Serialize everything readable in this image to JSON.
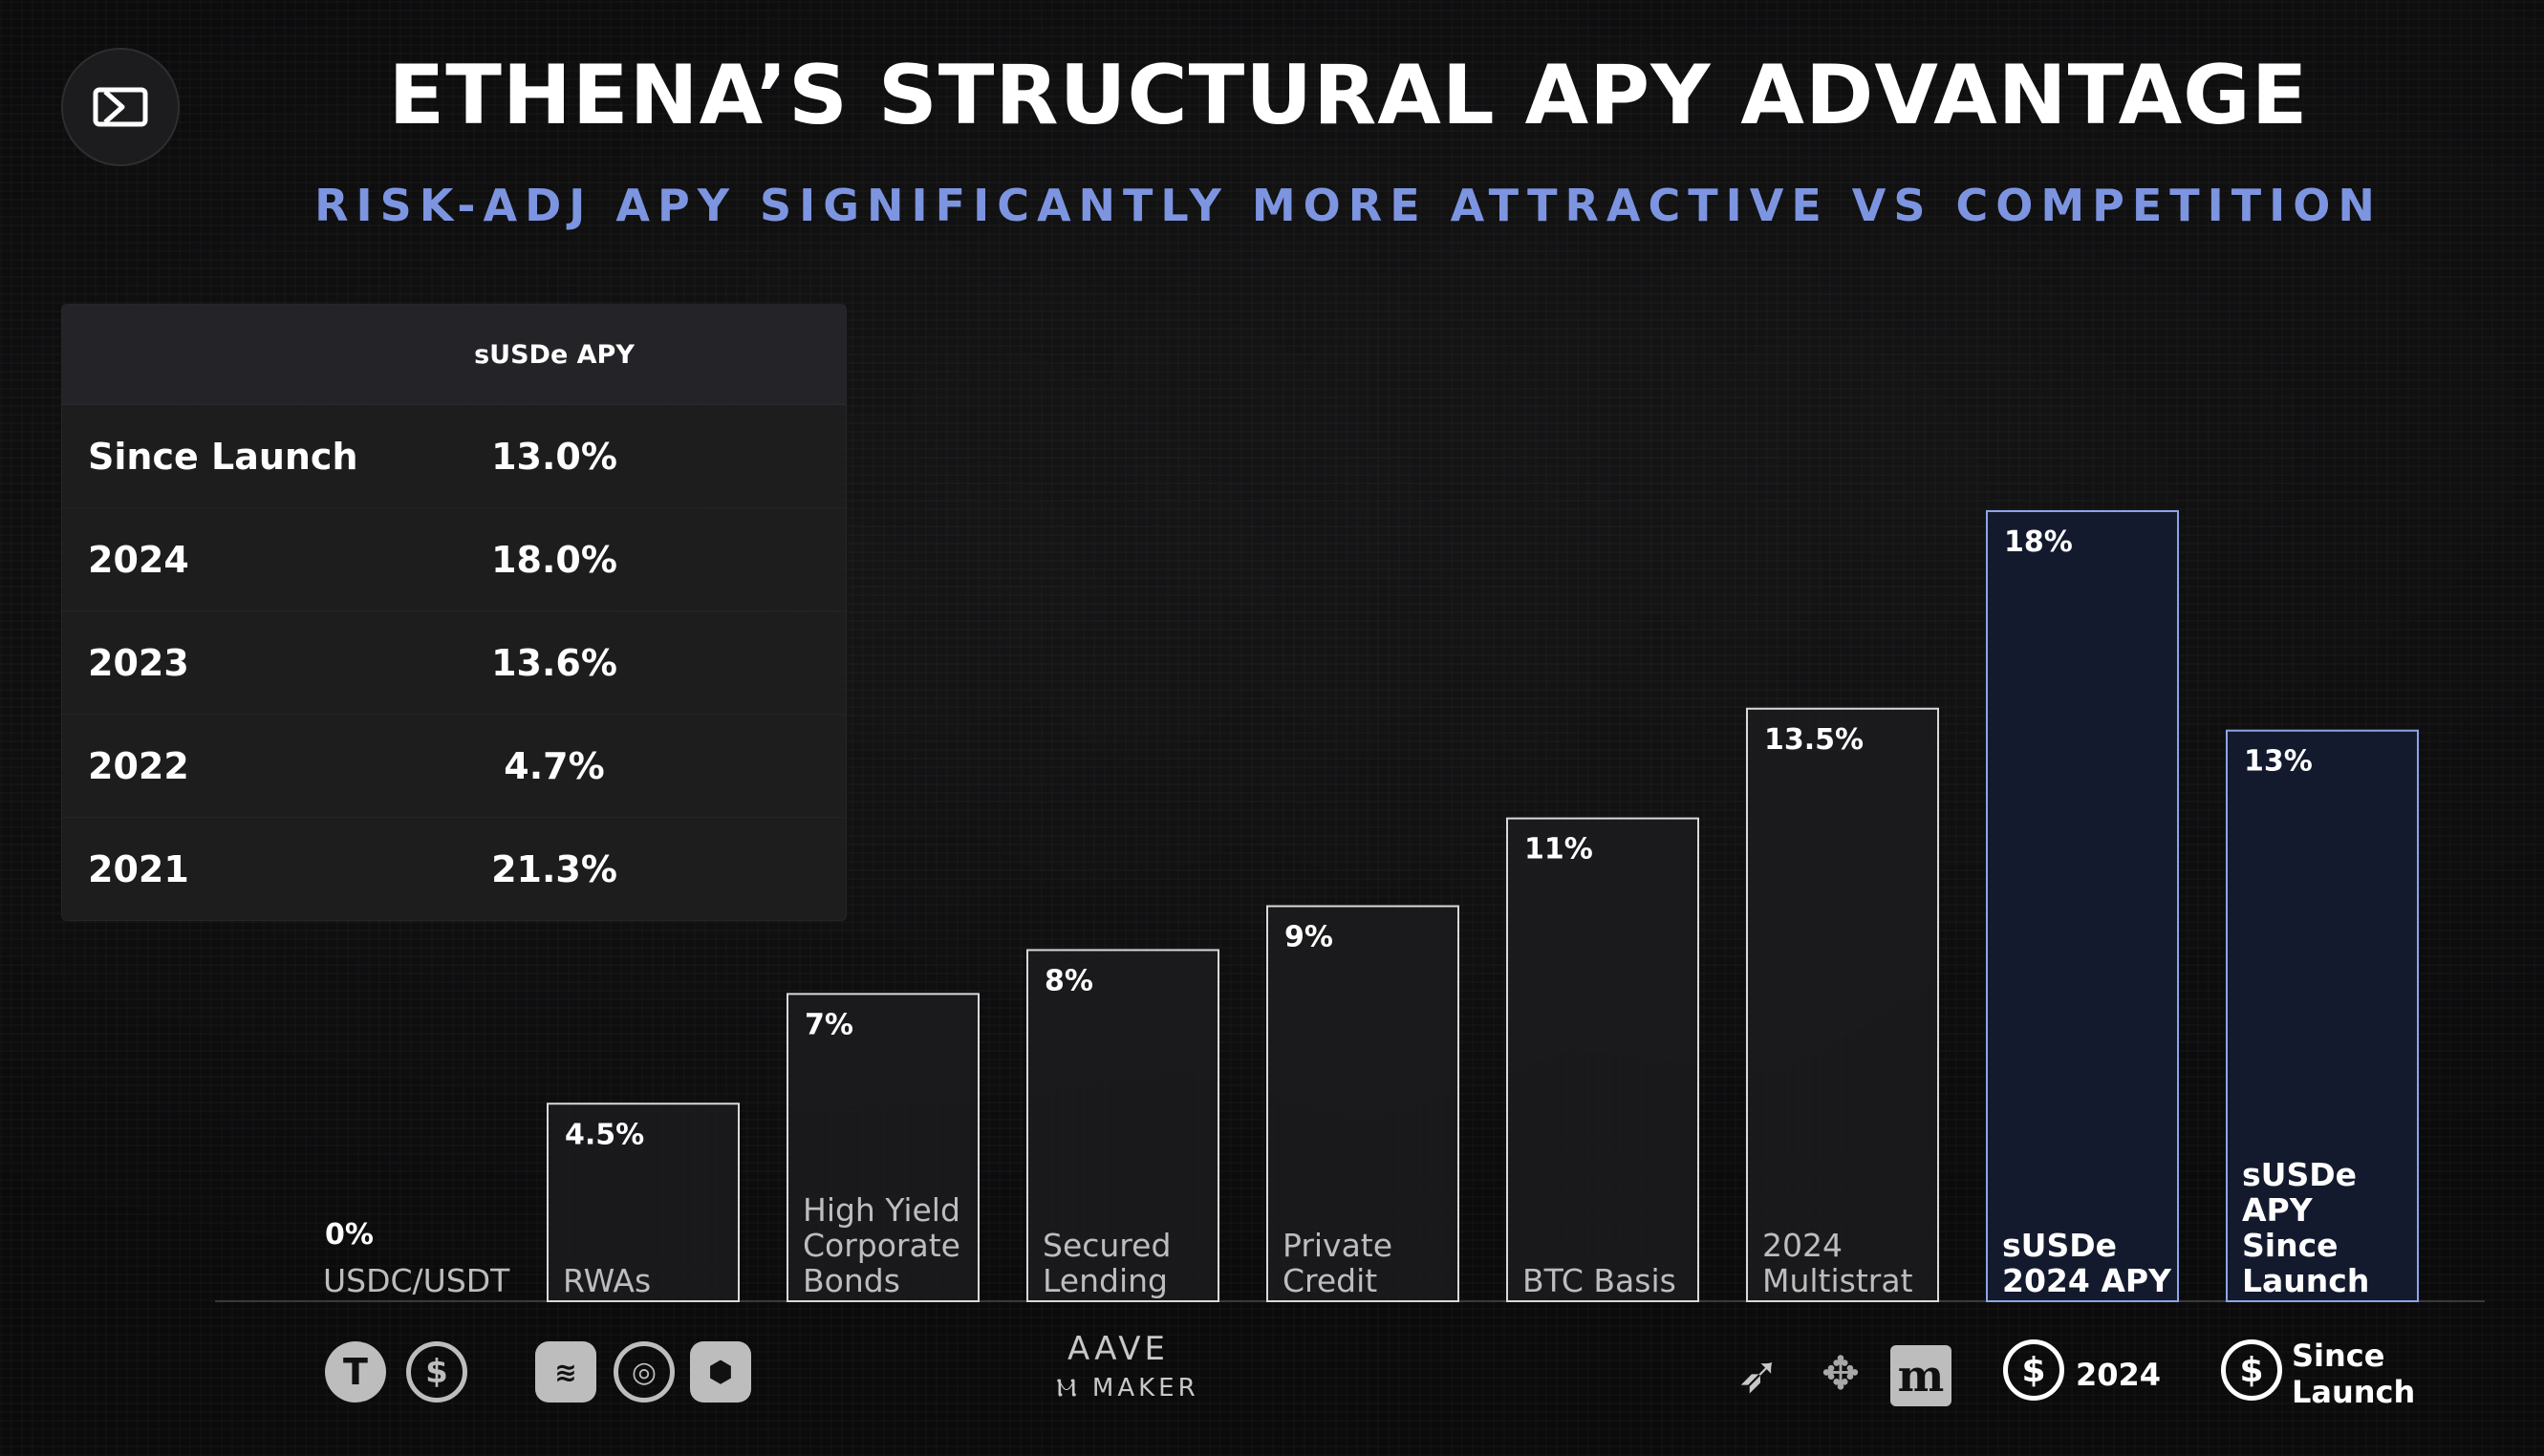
{
  "header": {
    "title": "ETHENA’S STRUCTURAL APY ADVANTAGE",
    "subtitle": "RISK-ADJ APY SIGNIFICANTLY MORE ATTRACTIVE VS COMPETITION"
  },
  "table": {
    "column_header": "sUSDe APY",
    "rows": [
      {
        "label": "Since Launch",
        "value": "13.0%"
      },
      {
        "label": "2024",
        "value": "18.0%"
      },
      {
        "label": "2023",
        "value": "13.6%"
      },
      {
        "label": "2022",
        "value": "4.7%"
      },
      {
        "label": "2021",
        "value": "21.3%"
      }
    ]
  },
  "chart_data": {
    "type": "bar",
    "categories": [
      "USDC/USDT",
      "RWAs",
      "High Yield Corporate Bonds",
      "Secured Lending",
      "Private Credit",
      "BTC Basis",
      "2024 Multistrat",
      "sUSDe 2024 APY",
      "sUSDe APY Since Launch"
    ],
    "category_lines": [
      [
        "USDC/USDT"
      ],
      [
        "RWAs"
      ],
      [
        "High Yield",
        "Corporate",
        "Bonds"
      ],
      [
        "Secured",
        "Lending"
      ],
      [
        "Private",
        "Credit"
      ],
      [
        "BTC Basis"
      ],
      [
        "2024",
        "Multistrat"
      ],
      [
        "sUSDe",
        "2024 APY"
      ],
      [
        "sUSDe",
        "APY",
        "Since",
        "Launch"
      ]
    ],
    "values": [
      0,
      4.5,
      7,
      8,
      9,
      11,
      13.5,
      18,
      13
    ],
    "value_labels": [
      "0%",
      "4.5%",
      "7%",
      "8%",
      "9%",
      "11%",
      "13.5%",
      "18%",
      "13%"
    ],
    "highlighted": [
      false,
      false,
      false,
      false,
      false,
      false,
      false,
      true,
      true
    ],
    "ylim": [
      0,
      18
    ],
    "colors": {
      "bar_border": "#d9d9d9",
      "highlight_border": "#8fa4e8",
      "highlight_fill": "#141a2e"
    }
  },
  "footer": {
    "icons": [
      "tether-icon",
      "usdc-icon",
      "ondo-icon",
      "superstate-icon",
      "securitize-icon",
      "aave-wordmark",
      "maker-wordmark",
      "arrow-brand-icon",
      "pixel-brand-icon",
      "m-brand-icon",
      "susde-icon",
      "susde-icon"
    ],
    "aave": "AAVE",
    "maker": "MAKER",
    "legend_2024": "2024",
    "legend_since": [
      "Since",
      "Launch"
    ]
  }
}
